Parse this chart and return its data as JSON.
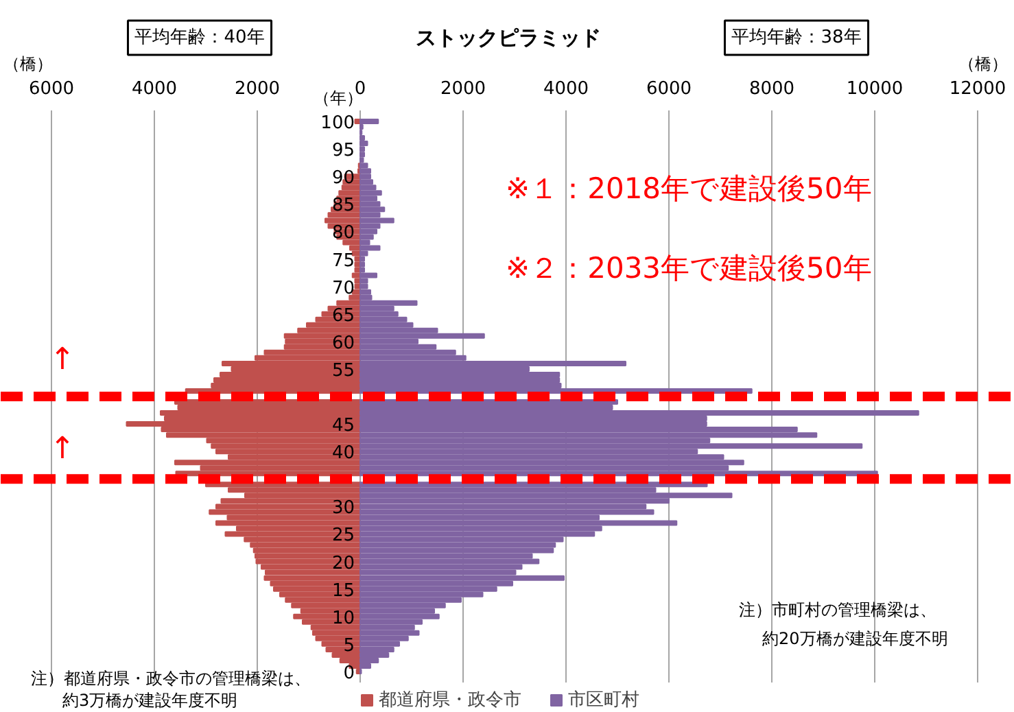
{
  "chart_data": {
    "type": "bar",
    "orientation": "horizontal",
    "stacked": true,
    "title": "ストックピラミッド",
    "ylabel": "（年）",
    "x": [
      0,
      1,
      2,
      3,
      4,
      5,
      6,
      7,
      8,
      9,
      10,
      11,
      12,
      13,
      14,
      15,
      16,
      17,
      18,
      19,
      20,
      21,
      22,
      23,
      24,
      25,
      26,
      27,
      28,
      29,
      30,
      31,
      32,
      33,
      34,
      35,
      36,
      37,
      38,
      39,
      40,
      41,
      42,
      43,
      44,
      45,
      46,
      47,
      48,
      49,
      50,
      51,
      52,
      53,
      54,
      55,
      56,
      57,
      58,
      59,
      60,
      61,
      62,
      63,
      64,
      65,
      66,
      67,
      68,
      69,
      70,
      71,
      72,
      73,
      74,
      75,
      76,
      77,
      78,
      79,
      80,
      81,
      82,
      83,
      84,
      85,
      86,
      87,
      88,
      89,
      90,
      91,
      92,
      93,
      94,
      95,
      96,
      97,
      98,
      99,
      100
    ],
    "series": [
      {
        "name": "都道府県・政令市",
        "color": "#c0504d",
        "values": [
          -70,
          -210,
          -390,
          -540,
          -660,
          -740,
          -860,
          -920,
          -950,
          -1120,
          -1290,
          -1150,
          -1330,
          -1450,
          -1560,
          -1680,
          -1740,
          -1860,
          -1840,
          -1920,
          -2020,
          -2040,
          -2070,
          -2130,
          -2250,
          -2620,
          -2400,
          -2800,
          -2580,
          -2930,
          -2800,
          -2700,
          -2240,
          -2560,
          -3000,
          null,
          -3580,
          -3100,
          -3600,
          -2560,
          -2800,
          -2890,
          -2980,
          -3760,
          -3860,
          -4540,
          -3800,
          -3880,
          -3540,
          -3600,
          null,
          -3390,
          -2890,
          -2840,
          -2720,
          -2500,
          -2680,
          -2040,
          -1860,
          -1470,
          -1450,
          -1470,
          -1210,
          -1040,
          -860,
          -740,
          -620,
          -450,
          -210,
          -150,
          -100,
          -100,
          -150,
          -100,
          -100,
          -100,
          -150,
          -200,
          -330,
          -450,
          -500,
          -620,
          -680,
          -620,
          -560,
          -500,
          -450,
          -410,
          -350,
          -330,
          -300,
          -40,
          -30,
          null,
          null,
          null,
          null,
          null,
          null,
          null,
          -100
        ]
      },
      {
        "name": "市区町村",
        "color": "#8064a2",
        "values": [
          20,
          200,
          350,
          550,
          650,
          760,
          930,
          1140,
          1050,
          1200,
          1530,
          1440,
          1650,
          1960,
          2380,
          2650,
          2960,
          3960,
          3020,
          3140,
          3470,
          3340,
          3750,
          3790,
          3940,
          4550,
          4690,
          6150,
          4640,
          5700,
          5550,
          6000,
          7220,
          5740,
          6740,
          null,
          10050,
          7150,
          7450,
          7060,
          6550,
          9750,
          6790,
          8870,
          8490,
          6730,
          6730,
          10850,
          4900,
          5000,
          null,
          7610,
          3900,
          3870,
          3870,
          3280,
          5160,
          2050,
          1850,
          1470,
          1120,
          2410,
          1500,
          1020,
          900,
          730,
          650,
          1100,
          220,
          200,
          140,
          140,
          320,
          80,
          80,
          80,
          140,
          380,
          180,
          250,
          320,
          380,
          650,
          380,
          470,
          380,
          320,
          410,
          300,
          240,
          200,
          200,
          140,
          60,
          80,
          80,
          140,
          80,
          30,
          50,
          350
        ]
      }
    ],
    "xlim": [
      -6000,
      12000
    ],
    "xticks": [
      {
        "value": -6000,
        "label": "6000"
      },
      {
        "value": -4000,
        "label": "4000"
      },
      {
        "value": -2000,
        "label": "2000"
      },
      0,
      2000,
      4000,
      6000,
      8000,
      10000,
      12000
    ],
    "ylim": [
      -2,
      102
    ],
    "yticks": [
      0,
      5,
      10,
      15,
      20,
      25,
      30,
      40,
      45,
      55,
      60,
      65,
      70,
      75,
      80,
      85,
      90,
      95,
      100
    ],
    "grid": "x",
    "legend": "bottom",
    "ref_lines": [
      {
        "axis": "y",
        "value": 50,
        "color": "#ff0000",
        "line_style": "dashed"
      },
      {
        "axis": "y",
        "value": 35,
        "color": "#ff0000",
        "line_style": "dashed"
      }
    ],
    "annotations": [
      "平均年齢：40年",
      "平均年齢：38年",
      "※１：2018年で建設後50年",
      "※２：2033年で建設後50年",
      "↑",
      "↑",
      "（橋）",
      "（橋）",
      "注）市町村の管理橋梁は、",
      "約20万橋が建設年度不明",
      "注）都道府県・政令市の管理橋梁は、",
      "約3万橋が建設年度不明"
    ]
  }
}
